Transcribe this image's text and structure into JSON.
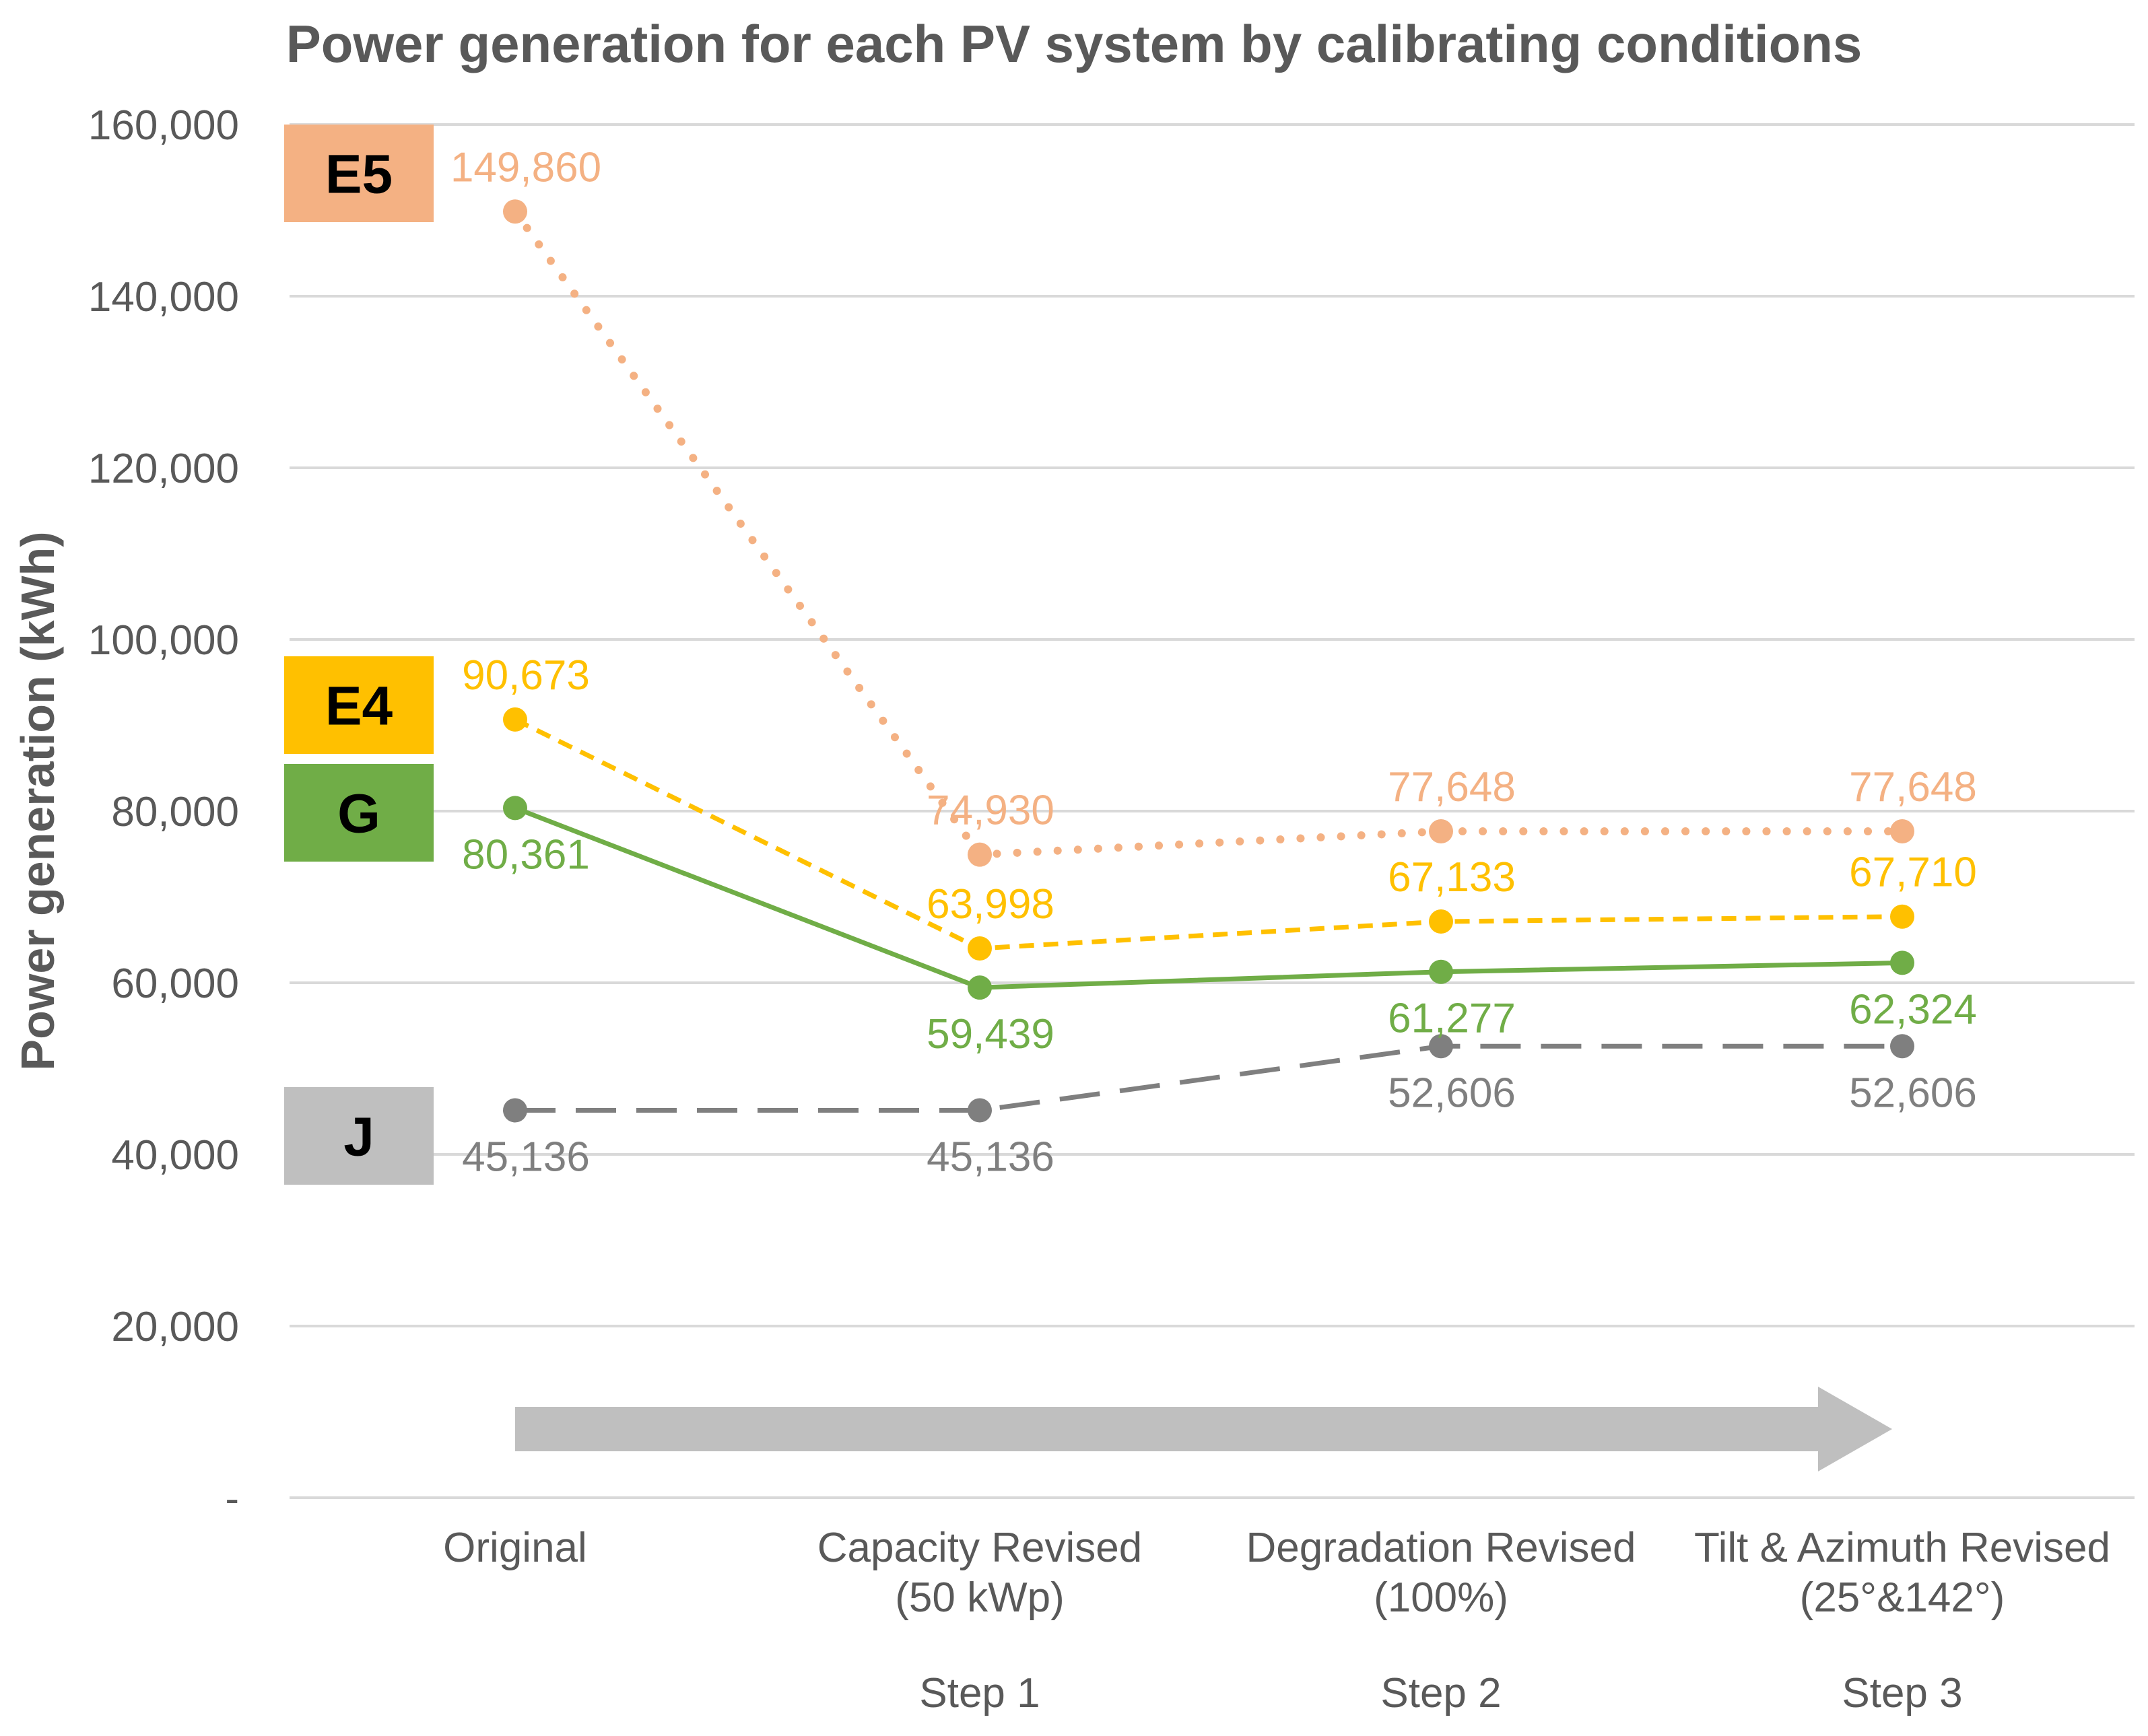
{
  "chart_data": {
    "type": "line",
    "title": "Power generation for each PV system by calibrating conditions",
    "ylabel": "Power generation (kWh)",
    "xlabel": "",
    "ylim": [
      0,
      160000
    ],
    "yticks": [
      {
        "value": 0,
        "label": "-"
      },
      {
        "value": 20000,
        "label": "20,000"
      },
      {
        "value": 40000,
        "label": "40,000"
      },
      {
        "value": 60000,
        "label": "60,000"
      },
      {
        "value": 80000,
        "label": "80,000"
      },
      {
        "value": 100000,
        "label": "100,000"
      },
      {
        "value": 120000,
        "label": "120,000"
      },
      {
        "value": 140000,
        "label": "140,000"
      },
      {
        "value": 160000,
        "label": "160,000"
      }
    ],
    "grid": true,
    "categories": [
      {
        "line1": "Original",
        "line2": "",
        "step": ""
      },
      {
        "line1": "Capacity Revised",
        "line2": "(50 kWp)",
        "step": "Step 1"
      },
      {
        "line1": "Degradation Revised",
        "line2": "(100%)",
        "step": "Step 2"
      },
      {
        "line1": "Tilt & Azimuth Revised",
        "line2": "(25°&142°)",
        "step": "Step 3"
      }
    ],
    "series": [
      {
        "name": "E5",
        "color": "#F4B183",
        "style": "dotted",
        "values": [
          149860,
          74930,
          77648,
          77648
        ],
        "labels": [
          "149,860",
          "74,930",
          "77,648",
          "77,648"
        ],
        "label_pos": [
          "above",
          "above",
          "above",
          "above"
        ]
      },
      {
        "name": "E4",
        "color": "#FFC000",
        "style": "dashed",
        "values": [
          90673,
          63998,
          67133,
          67710
        ],
        "labels": [
          "90,673",
          "63,998",
          "67,133",
          "67,710"
        ],
        "label_pos": [
          "above",
          "above",
          "above",
          "above"
        ]
      },
      {
        "name": "G",
        "color": "#70AD47",
        "style": "solid",
        "values": [
          80361,
          59439,
          61277,
          62324
        ],
        "labels": [
          "80,361",
          "59,439",
          "61,277",
          "62,324"
        ],
        "label_pos": [
          "below",
          "below",
          "below",
          "below"
        ]
      },
      {
        "name": "J",
        "color": "#7F7F7F",
        "style": "longdash",
        "values": [
          45136,
          45136,
          52606,
          52606
        ],
        "labels": [
          "45,136",
          "45,136",
          "52,606",
          "52,606"
        ],
        "label_pos": [
          "below",
          "below",
          "below",
          "below"
        ]
      }
    ],
    "badges": [
      {
        "label": "E5",
        "color": "#F4B183"
      },
      {
        "label": "E4",
        "color": "#FFC000"
      },
      {
        "label": "G",
        "color": "#70AD47"
      },
      {
        "label": "J",
        "color": "#BFBFBF"
      }
    ],
    "arrow_color": "#BFBFBF"
  }
}
